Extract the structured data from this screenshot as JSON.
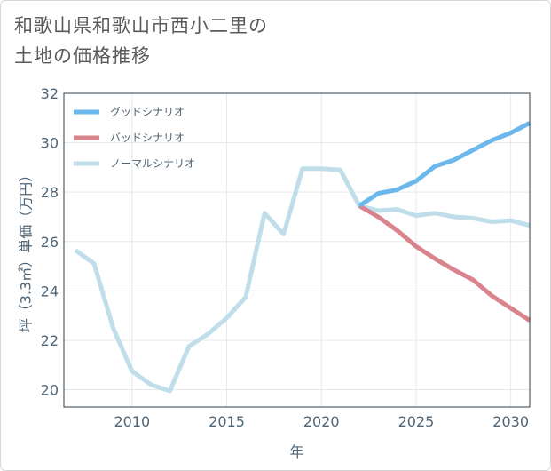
{
  "title_line1": "和歌山県和歌山市西小二里の",
  "title_line2": "土地の価格推移",
  "chart_data": {
    "type": "line",
    "xlabel": "年",
    "ylabel": "坪（3.3㎡）単価（万円）",
    "xlim": [
      2006.4,
      2031
    ],
    "ylim": [
      19.3,
      32
    ],
    "xticks": [
      2010,
      2015,
      2020,
      2025,
      2030
    ],
    "yticks": [
      20,
      22,
      24,
      26,
      28,
      30,
      32
    ],
    "grid": true,
    "legend_position": "top-left",
    "series": [
      {
        "name": "グッドシナリオ",
        "color": "#6cb8ec",
        "x": [
          2022,
          2023,
          2024,
          2025,
          2026,
          2027,
          2028,
          2029,
          2030,
          2031
        ],
        "y": [
          27.45,
          27.95,
          28.1,
          28.45,
          29.05,
          29.3,
          29.7,
          30.1,
          30.4,
          30.8
        ]
      },
      {
        "name": "バッドシナリオ",
        "color": "#d9838d",
        "x": [
          2022,
          2023,
          2024,
          2025,
          2026,
          2027,
          2028,
          2029,
          2030,
          2031
        ],
        "y": [
          27.45,
          27.0,
          26.45,
          25.8,
          25.3,
          24.85,
          24.45,
          23.8,
          23.3,
          22.8
        ]
      },
      {
        "name": "ノーマルシナリオ",
        "color": "#bfdeea",
        "x": [
          2007,
          2008,
          2009,
          2010,
          2011,
          2012,
          2013,
          2014,
          2015,
          2016,
          2017,
          2018,
          2019,
          2020,
          2021,
          2022,
          2023,
          2024,
          2025,
          2026,
          2027,
          2028,
          2029,
          2030,
          2031
        ],
        "y": [
          25.65,
          25.1,
          22.5,
          20.75,
          20.2,
          19.95,
          21.75,
          22.25,
          22.9,
          23.75,
          27.15,
          26.3,
          28.95,
          28.95,
          28.9,
          27.45,
          27.25,
          27.3,
          27.05,
          27.15,
          27.0,
          26.95,
          26.8,
          26.85,
          26.65
        ]
      }
    ]
  }
}
